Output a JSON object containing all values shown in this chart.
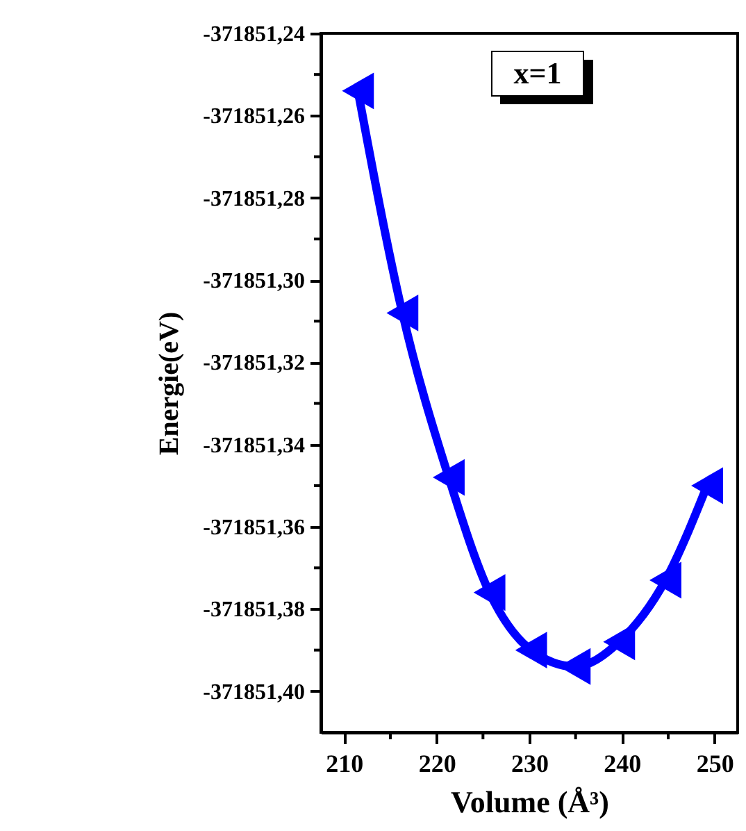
{
  "chart_data": {
    "type": "line",
    "xlabel": "Volume (Å³)",
    "ylabel": "Energie(eV)",
    "x": [
      211.5,
      216.3,
      221.3,
      225.7,
      230.2,
      234.9,
      239.7,
      244.7,
      249.2
    ],
    "series": [
      {
        "color": "#0000ff",
        "values": [
          -371851.254,
          -371851.308,
          -371851.348,
          -371851.376,
          -371851.39,
          -371851.394,
          -371851.388,
          -371851.373,
          -371851.35
        ]
      }
    ],
    "marker": "triangle",
    "line_style": "solid",
    "xlim": [
      207.5,
      252.5
    ],
    "xticks": [
      210,
      {
        "value": 215,
        "label": null
      },
      220,
      {
        "value": 225,
        "label": null
      },
      230,
      {
        "value": 235,
        "label": null
      },
      240,
      {
        "value": 245,
        "label": null
      },
      250
    ],
    "ylim": [
      -371851.41,
      -371851.24
    ],
    "yticks": [
      {
        "value": -371851.24,
        "label": "-371851,24"
      },
      {
        "value": -371851.25,
        "label": null
      },
      {
        "value": -371851.26,
        "label": "-371851,26"
      },
      {
        "value": -371851.27,
        "label": null
      },
      {
        "value": -371851.28,
        "label": "-371851,28"
      },
      {
        "value": -371851.29,
        "label": null
      },
      {
        "value": -371851.3,
        "label": "-371851,30"
      },
      {
        "value": -371851.31,
        "label": null
      },
      {
        "value": -371851.32,
        "label": "-371851,32"
      },
      {
        "value": -371851.33,
        "label": null
      },
      {
        "value": -371851.34,
        "label": "-371851,34"
      },
      {
        "value": -371851.35,
        "label": null
      },
      {
        "value": -371851.36,
        "label": "-371851,36"
      },
      {
        "value": -371851.37,
        "label": null
      },
      {
        "value": -371851.38,
        "label": "-371851,38"
      },
      {
        "value": -371851.39,
        "label": null
      },
      {
        "value": -371851.4,
        "label": "-371851,40"
      }
    ],
    "annotations": [
      "x=1"
    ],
    "grid": false
  }
}
